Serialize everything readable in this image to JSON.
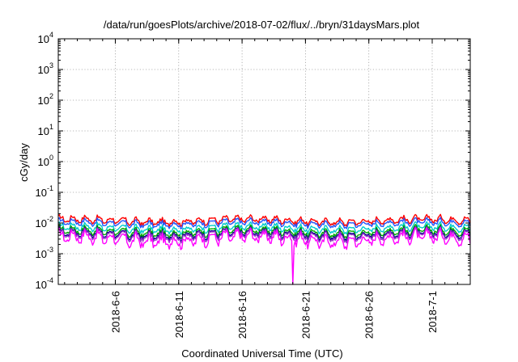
{
  "chart_data": {
    "type": "line",
    "title": "/data/run/goesPlots/archive/2018-07-02/flux/../bryn/31daysMars.plot",
    "xlabel": "Coordinated Universal Time (UTC)",
    "ylabel": "cGy/day",
    "yscale": "log",
    "ylim": [
      0.0001,
      10000
    ],
    "xlim": [
      "2018-06-01T12:00",
      "2018-07-04T00:00"
    ],
    "x_ticks": [
      "2018-6-6",
      "2018-6-11",
      "2018-6-16",
      "2018-6-21",
      "2018-6-26",
      "2018-7-1"
    ],
    "y_ticks": [
      {
        "base": "10",
        "exp": "-4",
        "value": 0.0001
      },
      {
        "base": "10",
        "exp": "-3",
        "value": 0.001
      },
      {
        "base": "10",
        "exp": "-2",
        "value": 0.01
      },
      {
        "base": "10",
        "exp": "-1",
        "value": 0.1
      },
      {
        "base": "10",
        "exp": "0",
        "value": 1
      },
      {
        "base": "10",
        "exp": "1",
        "value": 10
      },
      {
        "base": "10",
        "exp": "2",
        "value": 100
      },
      {
        "base": "10",
        "exp": "3",
        "value": 1000
      },
      {
        "base": "10",
        "exp": "4",
        "value": 10000
      }
    ],
    "grid": true,
    "series": [
      {
        "color": "#ff0000",
        "level": 0.012,
        "amp": 0.34,
        "dip_to": null
      },
      {
        "color": "#2255ff",
        "level": 0.0098,
        "amp": 0.32,
        "dip_to": null
      },
      {
        "color": "#00cccc",
        "level": 0.0068,
        "amp": 0.36,
        "dip_to": null
      },
      {
        "color": "#00aa00",
        "level": 0.0052,
        "amp": 0.4,
        "dip_to": null
      },
      {
        "color": "#000088",
        "level": 0.0044,
        "amp": 0.42,
        "dip_to": null
      },
      {
        "color": "#9933cc",
        "level": 0.004,
        "amp": 0.46,
        "dip_to": null
      },
      {
        "color": "#ff00ff",
        "level": 0.003,
        "amp": 0.62,
        "dip_to": 0.0001
      }
    ]
  }
}
